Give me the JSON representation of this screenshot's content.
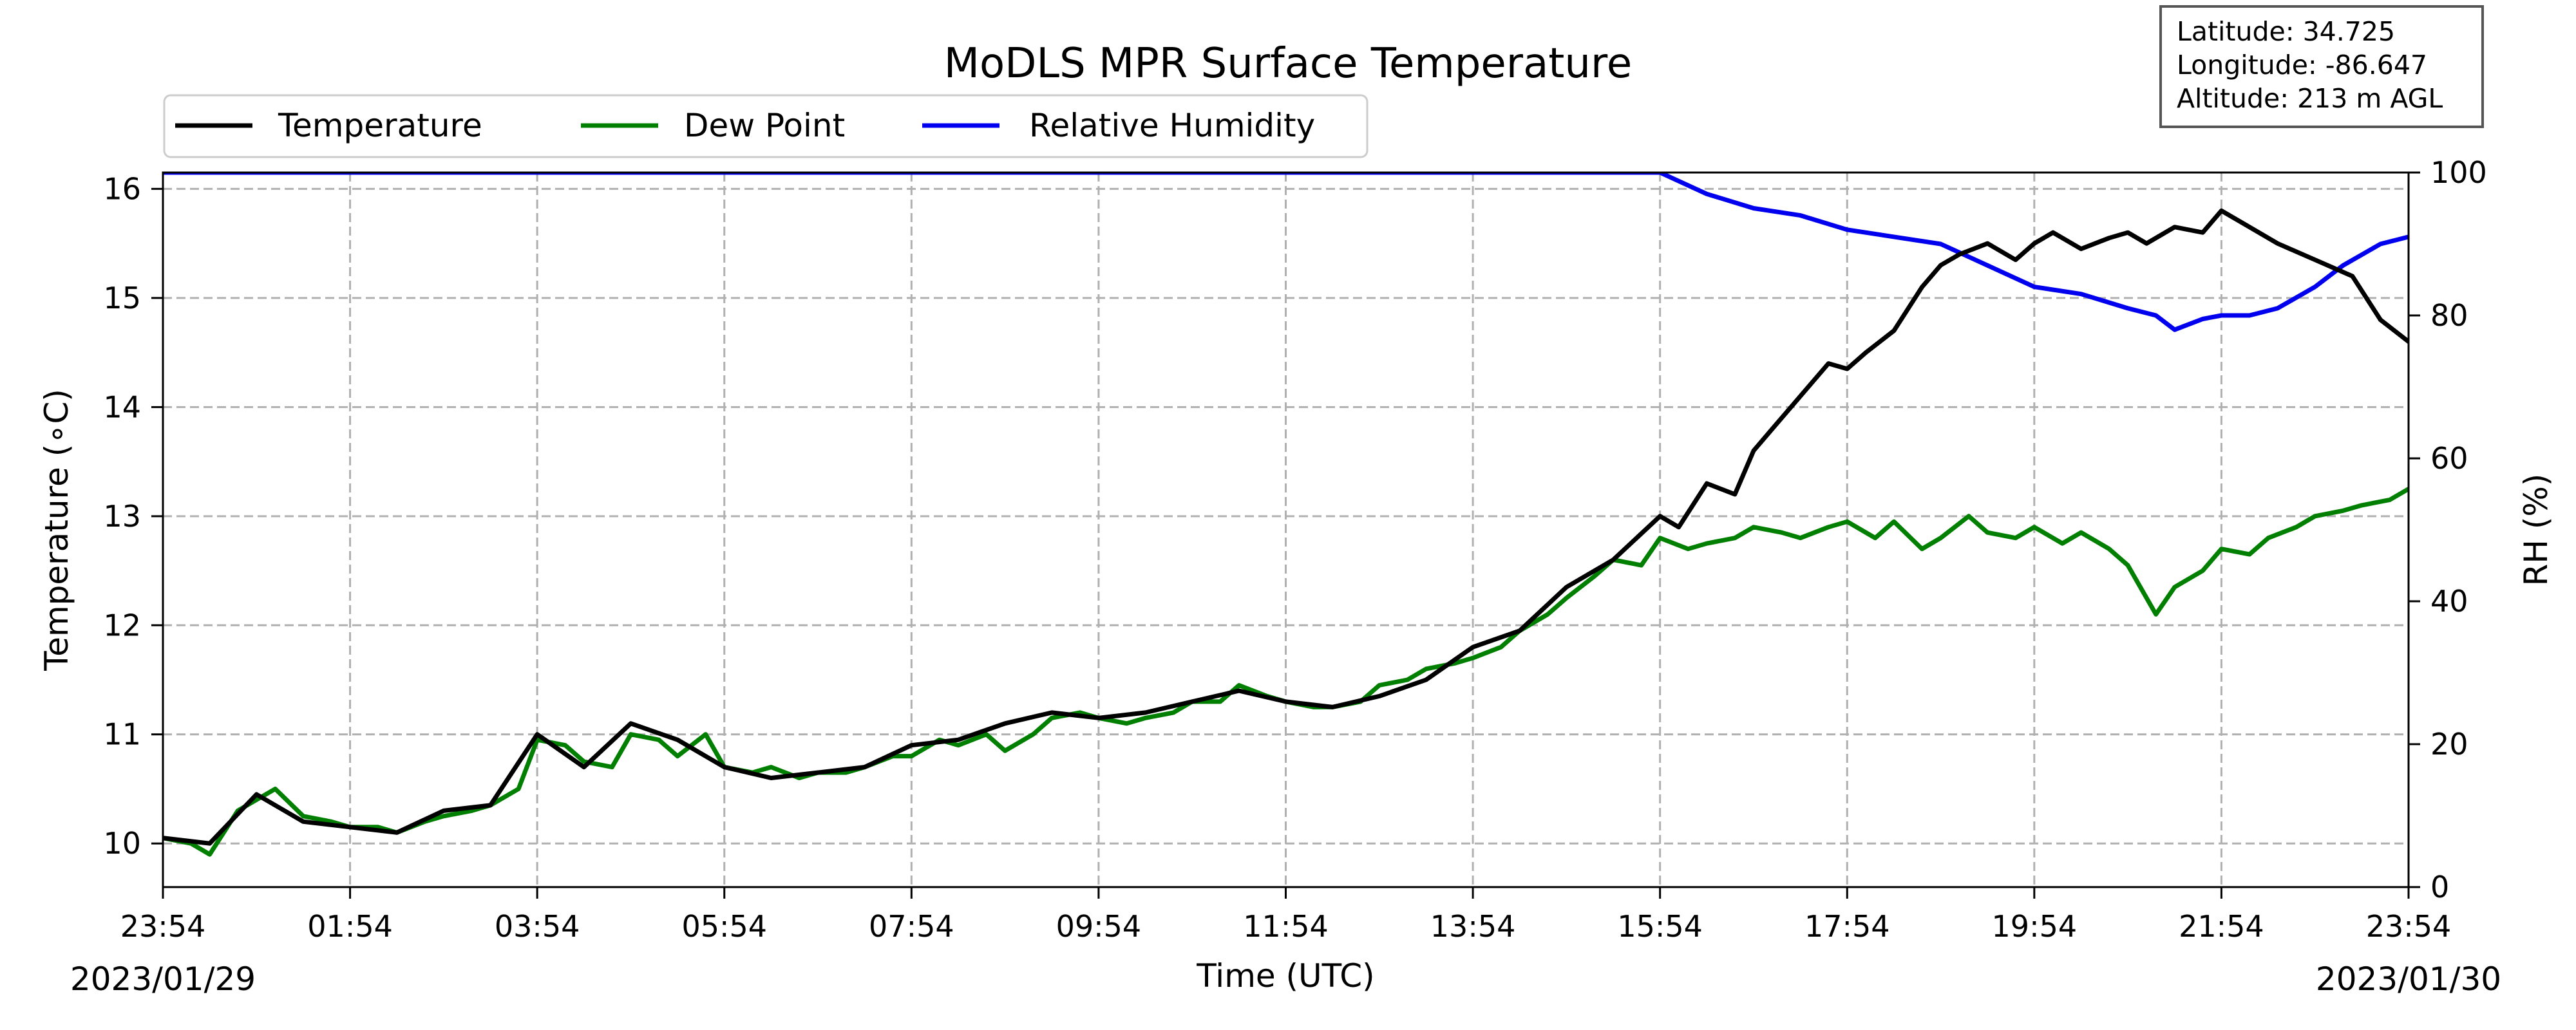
{
  "chart_data": {
    "type": "line",
    "title": "MoDLS MPR Surface Temperature",
    "xlabel": "Time (UTC)",
    "ylabel": "Temperature (∘C)",
    "ylabel_right": "RH (%)",
    "x_tick_labels": [
      "23:54",
      "01:54",
      "03:54",
      "05:54",
      "07:54",
      "09:54",
      "11:54",
      "13:54",
      "15:54",
      "17:54",
      "19:54",
      "21:54",
      "23:54"
    ],
    "x_range_hours": [
      0,
      24
    ],
    "date_start": "2023/01/29",
    "date_end": "2023/01/30",
    "y_left": {
      "ylim": [
        9.6,
        16.15
      ],
      "ticks": [
        10,
        11,
        12,
        13,
        14,
        15,
        16
      ]
    },
    "y_right": {
      "ylim": [
        0,
        100
      ],
      "ticks": [
        0,
        20,
        40,
        60,
        80,
        100
      ]
    },
    "grid": true,
    "legend": {
      "position": "top-left",
      "entries": [
        "Temperature",
        "Dew Point",
        "Relative Humidity"
      ]
    },
    "info_box": [
      "Latitude: 34.725",
      "Longitude: -86.647",
      "Altitude: 213 m AGL"
    ],
    "series": [
      {
        "name": "Temperature",
        "axis": "left",
        "color": "#000000",
        "hours": [
          0,
          0.5,
          1,
          1.5,
          2,
          2.5,
          3,
          3.5,
          4,
          4.5,
          5,
          5.5,
          6,
          6.5,
          7,
          7.5,
          8,
          8.5,
          9,
          9.5,
          10,
          10.5,
          11,
          11.5,
          12,
          12.5,
          13,
          13.5,
          14,
          14.5,
          15,
          15.5,
          16,
          16.2,
          16.5,
          16.8,
          17,
          17.2,
          17.5,
          17.8,
          18,
          18.2,
          18.5,
          18.8,
          19,
          19.2,
          19.5,
          19.8,
          20,
          20.2,
          20.5,
          20.8,
          21,
          21.2,
          21.5,
          21.8,
          22,
          22.3,
          22.6,
          23,
          23.4,
          23.7,
          24
        ],
        "values": [
          10.05,
          10.0,
          10.45,
          10.2,
          10.15,
          10.1,
          10.3,
          10.35,
          11.0,
          10.7,
          11.1,
          10.95,
          10.7,
          10.6,
          10.65,
          10.7,
          10.9,
          10.95,
          11.1,
          11.2,
          11.15,
          11.2,
          11.3,
          11.4,
          11.3,
          11.25,
          11.35,
          11.5,
          11.8,
          11.95,
          12.35,
          12.6,
          13.0,
          12.9,
          13.3,
          13.2,
          13.6,
          13.8,
          14.1,
          14.4,
          14.35,
          14.5,
          14.7,
          15.1,
          15.3,
          15.4,
          15.5,
          15.35,
          15.5,
          15.6,
          15.45,
          15.55,
          15.6,
          15.5,
          15.65,
          15.6,
          15.8,
          15.65,
          15.5,
          15.35,
          15.2,
          14.8,
          14.6
        ]
      },
      {
        "name": "Dew Point",
        "axis": "left",
        "color": "#007f00",
        "hours": [
          0,
          0.3,
          0.5,
          0.8,
          1,
          1.2,
          1.5,
          1.8,
          2,
          2.3,
          2.5,
          2.8,
          3,
          3.3,
          3.5,
          3.8,
          4,
          4.3,
          4.5,
          4.8,
          5,
          5.3,
          5.5,
          5.8,
          6,
          6.3,
          6.5,
          6.8,
          7,
          7.3,
          7.5,
          7.8,
          8,
          8.3,
          8.5,
          8.8,
          9,
          9.3,
          9.5,
          9.8,
          10,
          10.3,
          10.5,
          10.8,
          11,
          11.3,
          11.5,
          11.8,
          12,
          12.3,
          12.5,
          12.8,
          13,
          13.3,
          13.5,
          13.8,
          14,
          14.3,
          14.5,
          14.8,
          15,
          15.3,
          15.5,
          15.8,
          16,
          16.3,
          16.5,
          16.8,
          17,
          17.3,
          17.5,
          17.8,
          18,
          18.3,
          18.5,
          18.8,
          19,
          19.3,
          19.5,
          19.8,
          20,
          20.3,
          20.5,
          20.8,
          21,
          21.3,
          21.5,
          21.8,
          22,
          22.3,
          22.5,
          22.8,
          23,
          23.3,
          23.5,
          23.8,
          24
        ],
        "values": [
          10.05,
          10.0,
          9.9,
          10.3,
          10.4,
          10.5,
          10.25,
          10.2,
          10.15,
          10.15,
          10.1,
          10.2,
          10.25,
          10.3,
          10.35,
          10.5,
          10.95,
          10.9,
          10.75,
          10.7,
          11.0,
          10.95,
          10.8,
          11.0,
          10.7,
          10.65,
          10.7,
          10.6,
          10.65,
          10.65,
          10.7,
          10.8,
          10.8,
          10.95,
          10.9,
          11.0,
          10.85,
          11.0,
          11.15,
          11.2,
          11.15,
          11.1,
          11.15,
          11.2,
          11.3,
          11.3,
          11.45,
          11.35,
          11.3,
          11.25,
          11.25,
          11.3,
          11.45,
          11.5,
          11.6,
          11.65,
          11.7,
          11.8,
          11.95,
          12.1,
          12.25,
          12.45,
          12.6,
          12.55,
          12.8,
          12.7,
          12.75,
          12.8,
          12.9,
          12.85,
          12.8,
          12.9,
          12.95,
          12.8,
          12.95,
          12.7,
          12.8,
          13.0,
          12.85,
          12.8,
          12.9,
          12.75,
          12.85,
          12.7,
          12.55,
          12.1,
          12.35,
          12.5,
          12.7,
          12.65,
          12.8,
          12.9,
          13.0,
          13.05,
          13.1,
          13.15,
          13.25
        ]
      },
      {
        "name": "Relative Humidity",
        "axis": "right",
        "color": "#0000ee",
        "hours": [
          0,
          2,
          4,
          6,
          8,
          10,
          12,
          14,
          16,
          16.5,
          17,
          17.5,
          18,
          18.5,
          19,
          19.5,
          20,
          20.5,
          21,
          21.3,
          21.5,
          21.8,
          22,
          22.3,
          22.6,
          23,
          23.3,
          23.7,
          24
        ],
        "values": [
          100,
          100,
          100,
          100,
          100,
          100,
          100,
          100,
          100,
          97,
          95,
          94,
          92,
          91,
          90,
          87,
          84,
          83,
          81,
          80,
          78,
          79.5,
          80,
          80,
          81,
          84,
          87,
          90,
          91
        ]
      }
    ]
  }
}
